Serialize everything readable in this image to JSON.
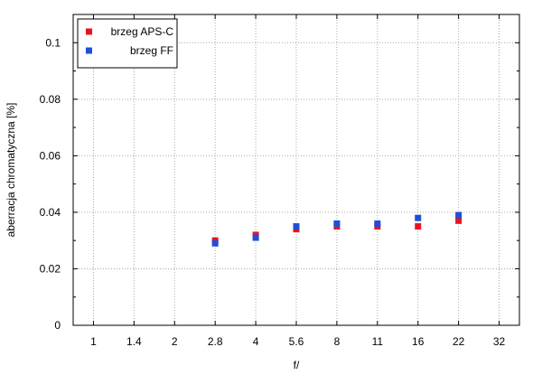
{
  "chart_data": {
    "type": "scatter",
    "title": "",
    "xlabel": "f/",
    "ylabel": "aberracja chromatyczna [%]",
    "categories": [
      "1",
      "1.4",
      "2",
      "2.8",
      "4",
      "5.6",
      "8",
      "11",
      "16",
      "22",
      "32"
    ],
    "ylim": [
      0,
      0.11
    ],
    "yticks": [
      0,
      0.02,
      0.04,
      0.06,
      0.08,
      0.1
    ],
    "ytick_labels": [
      "0",
      "0.02",
      "0.04",
      "0.06",
      "0.08",
      "0.1"
    ],
    "grid": true,
    "legend_position": "top-left",
    "series": [
      {
        "name": "brzeg APS-C",
        "color": "#e8141c",
        "x": [
          "2.8",
          "4",
          "5.6",
          "8",
          "11",
          "16",
          "22"
        ],
        "values": [
          0.03,
          0.032,
          0.034,
          0.035,
          0.035,
          0.035,
          0.037
        ]
      },
      {
        "name": "brzeg FF",
        "color": "#1f4fd8",
        "x": [
          "2.8",
          "4",
          "5.6",
          "8",
          "11",
          "16",
          "22"
        ],
        "values": [
          0.029,
          0.031,
          0.035,
          0.036,
          0.036,
          0.038,
          0.039
        ]
      }
    ]
  }
}
